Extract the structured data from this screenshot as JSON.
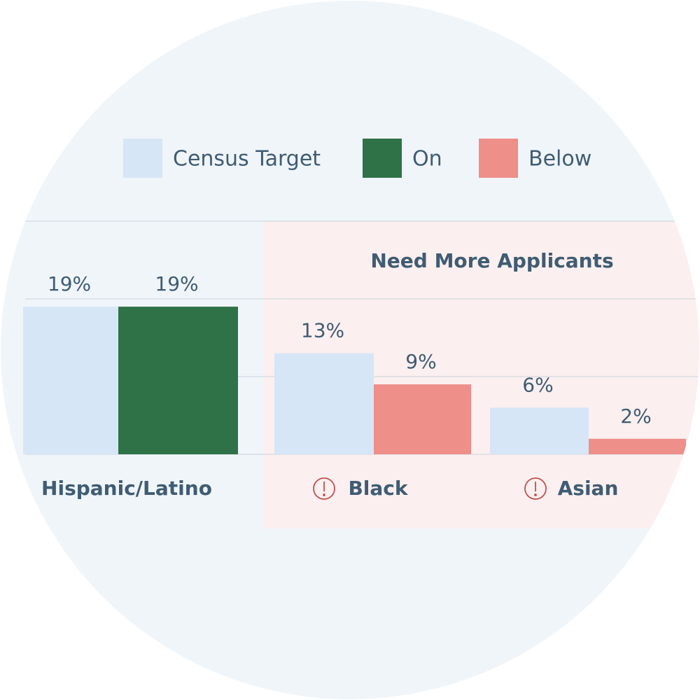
{
  "chart_data": {
    "type": "bar",
    "annotation": "Need More Applicants",
    "legend": [
      {
        "name": "Census Target",
        "color": "#d6e6f6"
      },
      {
        "name": "On",
        "color": "#2f7248"
      },
      {
        "name": "Below",
        "color": "#ef8f89"
      }
    ],
    "categories": [
      "Hispanic/Latino",
      "Black",
      "Asian"
    ],
    "series": [
      {
        "name": "Census Target",
        "color": "#d6e6f6",
        "values": [
          19,
          13,
          6
        ],
        "value_labels": [
          "19%",
          "13%",
          "6%"
        ]
      },
      {
        "colors": [
          "#2f7248",
          "#ef8f89",
          "#ef8f89"
        ],
        "values": [
          19,
          9,
          2
        ],
        "value_labels": [
          "19%",
          "9%",
          "2%"
        ]
      }
    ],
    "ylim": [
      0,
      30
    ],
    "yticks": [
      0,
      10,
      20,
      30
    ],
    "grid": true
  }
}
